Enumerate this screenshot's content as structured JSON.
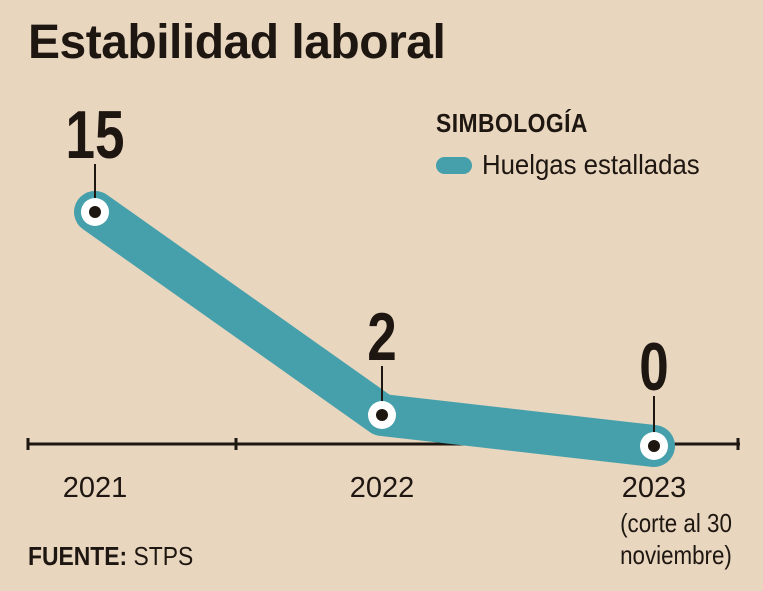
{
  "title": "Estabilidad laboral",
  "legend": {
    "heading": "SIMBOLOGÍA"
  },
  "source": {
    "label": "FUENTE:",
    "value": "STPS"
  },
  "colors": {
    "background": "#e8d6bf",
    "series": "#46a0ab",
    "text": "#1e1610",
    "marker_fill": "#ffffff"
  },
  "chart_data": {
    "type": "line",
    "title": "Estabilidad laboral",
    "x": [
      "2021",
      "2022",
      "2023"
    ],
    "x_notes": [
      "",
      "",
      "(corte al 30 noviembre)"
    ],
    "series": [
      {
        "name": "Huelgas estalladas",
        "values": [
          15,
          2,
          0
        ]
      }
    ],
    "data_labels": [
      "15",
      "2",
      "0"
    ],
    "ylim": [
      0,
      16
    ],
    "grid": false,
    "legend_position": "top-right"
  }
}
